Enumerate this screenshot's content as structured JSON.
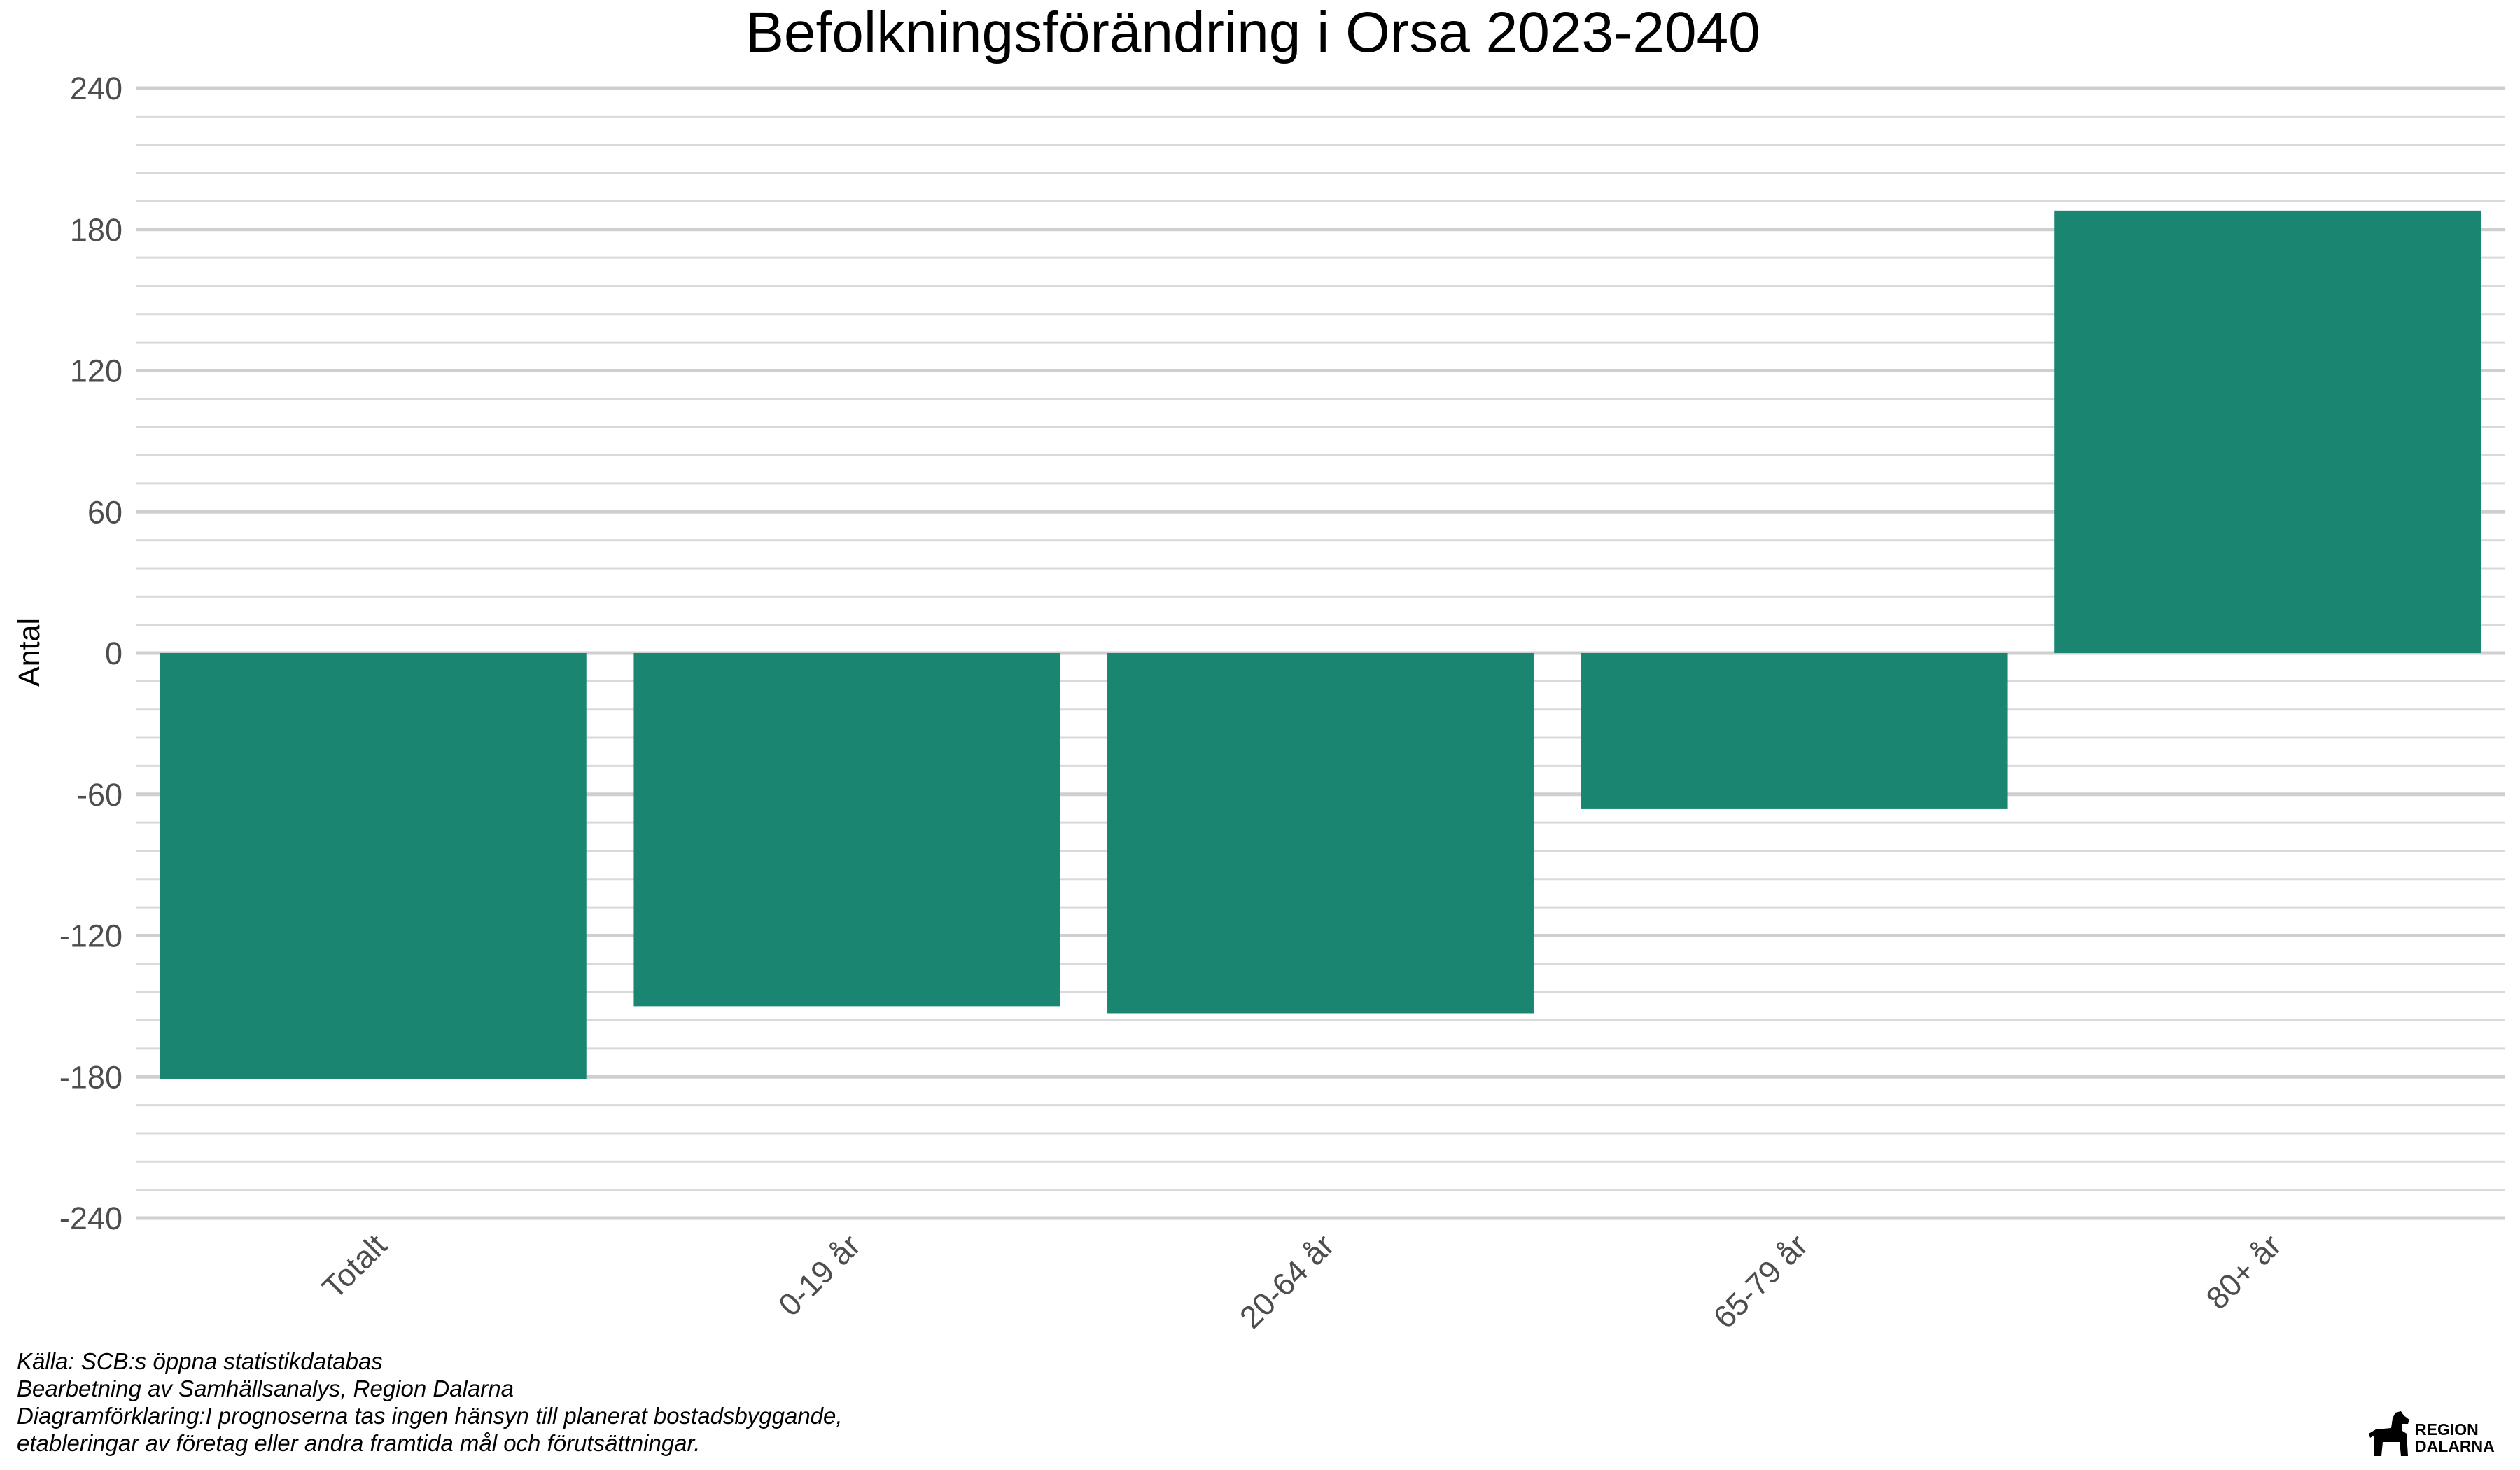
{
  "chart_data": {
    "type": "bar",
    "title": "Befolkningsförändring i Orsa 2023-2040",
    "ylabel": "Antal",
    "xlabel": "",
    "categories": [
      "Totalt",
      "0-19 år",
      "20-64 år",
      "65-79 år",
      "80+ år"
    ],
    "values": [
      -181,
      -150,
      -153,
      -66,
      188
    ],
    "ylim": [
      -240,
      240
    ],
    "yticks": [
      240,
      180,
      120,
      60,
      0,
      -60,
      -120,
      -180,
      -240
    ],
    "minor_step": 12,
    "grid": true,
    "legend": "none",
    "bar_color": "#1a8672"
  },
  "caption": {
    "lines": [
      "Källa: SCB:s öppna statistikdatabas",
      "Bearbetning av Samhällsanalys, Region Dalarna",
      "Diagramförklaring:I prognoserna tas ingen hänsyn till planerat bostadsbyggande,",
      "etableringar av företag eller andra framtida mål och förutsättningar."
    ]
  },
  "logo": {
    "line1": "REGION",
    "line2": "DALARNA"
  }
}
